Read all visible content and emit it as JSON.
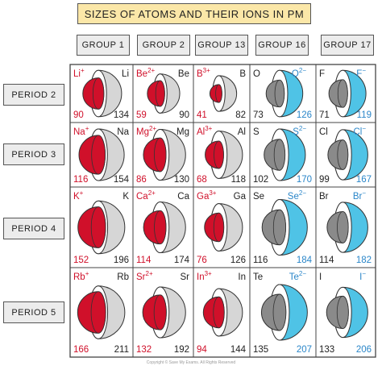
{
  "title": "SIZES OF ATOMS AND THEIR IONS IN PM",
  "groups": [
    "GROUP 1",
    "GROUP 2",
    "GROUP 13",
    "GROUP 16",
    "GROUP 17"
  ],
  "periods": [
    "PERIOD 2",
    "PERIOD 3",
    "PERIOD 4",
    "PERIOD 5"
  ],
  "colors": {
    "cation": "#d0102a",
    "anion": "#4fc3e6",
    "atom_light": "#d6d6d6",
    "atom_dark": "#8a8a8a",
    "cation_text": "#d0102a",
    "anion_text": "#2a86c9"
  },
  "cells": [
    [
      {
        "ion": "Li",
        "charge": "+",
        "atom": "Li",
        "ion_r": 90,
        "atom_r": 134,
        "type": "cation"
      },
      {
        "ion": "Be",
        "charge": "2+",
        "atom": "Be",
        "ion_r": 59,
        "atom_r": 90,
        "type": "cation"
      },
      {
        "ion": "B",
        "charge": "3+",
        "atom": "B",
        "ion_r": 41,
        "atom_r": 82,
        "type": "cation"
      },
      {
        "atom": "O",
        "ion": "O",
        "charge": "2−",
        "atom_r": 73,
        "ion_r": 126,
        "type": "anion"
      },
      {
        "atom": "F",
        "ion": "F",
        "charge": "−",
        "atom_r": 71,
        "ion_r": 119,
        "type": "anion"
      }
    ],
    [
      {
        "ion": "Na",
        "charge": "+",
        "atom": "Na",
        "ion_r": 116,
        "atom_r": 154,
        "type": "cation"
      },
      {
        "ion": "Mg",
        "charge": "2+",
        "atom": "Mg",
        "ion_r": 86,
        "atom_r": 130,
        "type": "cation"
      },
      {
        "ion": "Al",
        "charge": "3+",
        "atom": "Al",
        "ion_r": 68,
        "atom_r": 118,
        "type": "cation"
      },
      {
        "atom": "S",
        "ion": "S",
        "charge": "2−",
        "atom_r": 102,
        "ion_r": 170,
        "type": "anion"
      },
      {
        "atom": "Cl",
        "ion": "Cl",
        "charge": "−",
        "atom_r": 99,
        "ion_r": 167,
        "type": "anion"
      }
    ],
    [
      {
        "ion": "K",
        "charge": "+",
        "atom": "K",
        "ion_r": 152,
        "atom_r": 196,
        "type": "cation"
      },
      {
        "ion": "Ca",
        "charge": "2+",
        "atom": "Ca",
        "ion_r": 114,
        "atom_r": 174,
        "type": "cation"
      },
      {
        "ion": "Ga",
        "charge": "3+",
        "atom": "Ga",
        "ion_r": 76,
        "atom_r": 126,
        "type": "cation"
      },
      {
        "atom": "Se",
        "ion": "Se",
        "charge": "2−",
        "atom_r": 116,
        "ion_r": 184,
        "type": "anion"
      },
      {
        "atom": "Br",
        "ion": "Br",
        "charge": "−",
        "atom_r": 114,
        "ion_r": 182,
        "type": "anion"
      }
    ],
    [
      {
        "ion": "Rb",
        "charge": "+",
        "atom": "Rb",
        "ion_r": 166,
        "atom_r": 211,
        "type": "cation"
      },
      {
        "ion": "Sr",
        "charge": "2+",
        "atom": "Sr",
        "ion_r": 132,
        "atom_r": 192,
        "type": "cation"
      },
      {
        "ion": "In",
        "charge": "3+",
        "atom": "In",
        "ion_r": 94,
        "atom_r": 144,
        "type": "cation"
      },
      {
        "atom": "Te",
        "ion": "Te",
        "charge": "2−",
        "atom_r": 135,
        "ion_r": 207,
        "type": "anion"
      },
      {
        "atom": "I",
        "ion": "I",
        "charge": "−",
        "atom_r": 133,
        "ion_r": 206,
        "type": "anion"
      }
    ]
  ],
  "copyright": "Copyright © Save My Exams. All Rights Reserved"
}
